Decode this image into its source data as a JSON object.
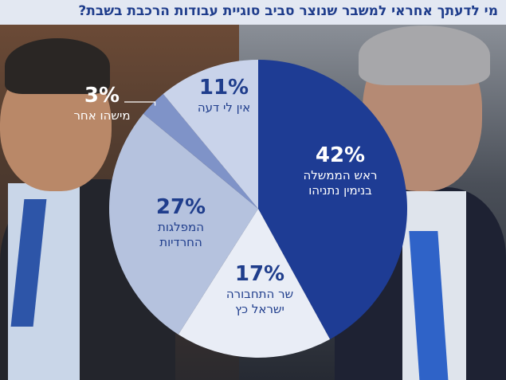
{
  "title": "מי לדעתך אחראי למשבר שנוצר סביב סוגיית עבודות הרכבת בשבת?",
  "colors": {
    "title_text": "#1f3d8c",
    "title_bg": "#e3e8f2",
    "slices": [
      "#1e3c94",
      "#e9edf6",
      "#b5c2de",
      "#7f93c8",
      "#c9d3ea"
    ],
    "label_light": "#ffffff",
    "label_dark": "#1f3d8c"
  },
  "chart_data": {
    "type": "pie",
    "title": "מי לדעתך אחראי למשבר שנוצר סביב סוגיית עבודות הרכבת בשבת?",
    "slices": [
      {
        "percent": 42,
        "value_label": "42%",
        "lines": [
          "ראש הממשלה",
          "בנימין נתניהו"
        ]
      },
      {
        "percent": 17,
        "value_label": "17%",
        "lines": [
          "שר התחבורה",
          "ישראל כץ"
        ]
      },
      {
        "percent": 27,
        "value_label": "27%",
        "lines": [
          "המפלגות",
          "החרדיות"
        ]
      },
      {
        "percent": 3,
        "value_label": "3%",
        "lines": [
          "מישהו אחר"
        ]
      },
      {
        "percent": 11,
        "value_label": "11%",
        "lines": [
          "אין לי דעה"
        ]
      }
    ]
  }
}
